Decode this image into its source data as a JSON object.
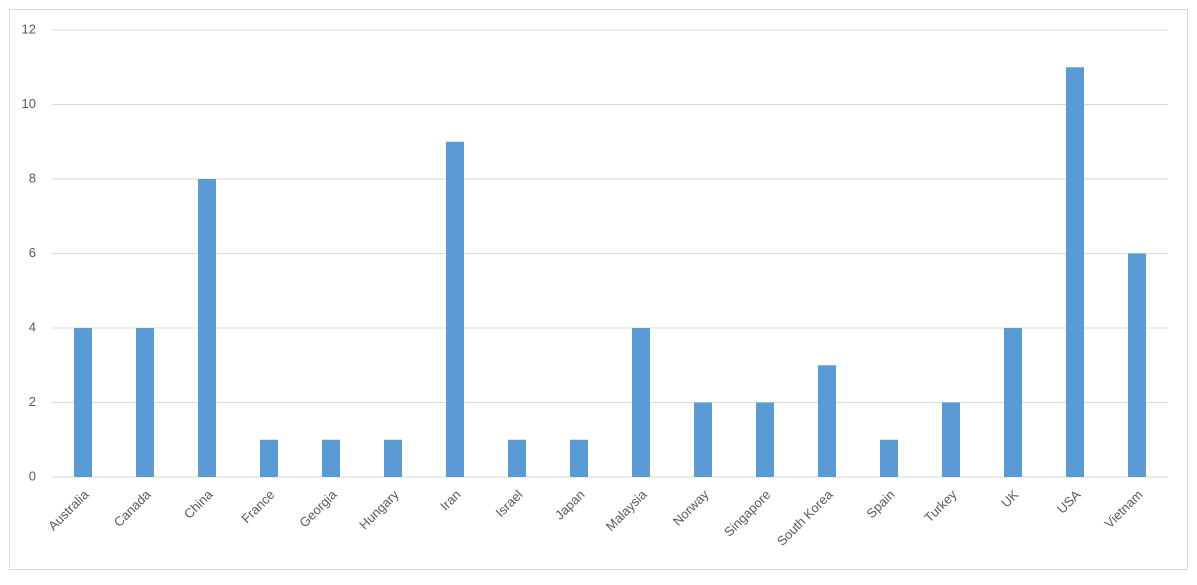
{
  "chart_data": {
    "type": "bar",
    "categories": [
      "Australia",
      "Canada",
      "China",
      "France",
      "Georgia",
      "Hungary",
      "Iran",
      "Israel",
      "Japan",
      "Malaysia",
      "Norway",
      "Singapore",
      "South Korea",
      "Spain",
      "Turkey",
      "UK",
      "USA",
      "Vietnam"
    ],
    "values": [
      4,
      4,
      8,
      1,
      1,
      1,
      9,
      1,
      1,
      4,
      2,
      2,
      3,
      1,
      2,
      4,
      11,
      6
    ],
    "color": "#5b9bd5",
    "ylim": [
      0,
      12
    ],
    "yticks": [
      0,
      2,
      4,
      6,
      8,
      10,
      12
    ],
    "grid": true
  }
}
